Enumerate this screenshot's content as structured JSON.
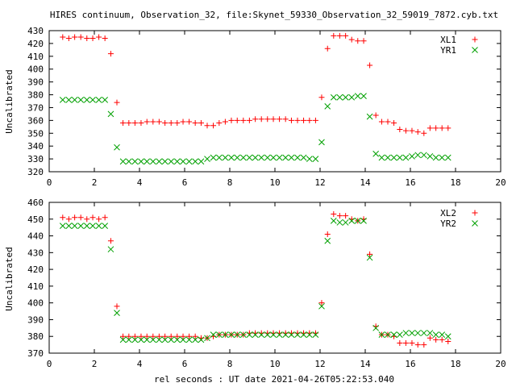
{
  "figure_title": "HIRES continuum, Observation_32, file:Skynet_59330_Observation_32_59019_7872.cyb.txt",
  "chart_data": [
    {
      "type": "scatter",
      "title": "",
      "xlabel": "",
      "ylabel": "Uncalibrated",
      "xlim": [
        0,
        20
      ],
      "ylim": [
        320,
        430
      ],
      "xticks": [
        0,
        2,
        4,
        6,
        8,
        10,
        12,
        14,
        16,
        18,
        20
      ],
      "yticks": [
        320,
        330,
        340,
        350,
        360,
        370,
        380,
        390,
        400,
        410,
        420,
        430
      ],
      "grid": false,
      "legend_position": "top-right",
      "x": [
        0.6,
        0.87,
        1.13,
        1.4,
        1.67,
        1.93,
        2.2,
        2.47,
        2.73,
        3.0,
        3.27,
        3.53,
        3.8,
        4.07,
        4.33,
        4.6,
        4.87,
        5.13,
        5.4,
        5.67,
        5.93,
        6.2,
        6.47,
        6.73,
        7.0,
        7.27,
        7.53,
        7.8,
        8.07,
        8.33,
        8.6,
        8.87,
        9.13,
        9.4,
        9.67,
        9.93,
        10.2,
        10.47,
        10.73,
        11.0,
        11.27,
        11.53,
        11.8,
        12.07,
        12.33,
        12.6,
        12.87,
        13.13,
        13.4,
        13.67,
        13.93,
        14.2,
        14.47,
        14.73,
        15.0,
        15.27,
        15.53,
        15.8,
        16.07,
        16.33,
        16.6,
        16.87,
        17.13,
        17.4,
        17.67,
        17.93,
        18.2
      ],
      "series": [
        {
          "name": "XL1",
          "marker": "plus",
          "color": "#ff0000",
          "values": [
            425,
            424,
            425,
            425,
            424,
            424,
            425,
            424,
            412,
            374,
            358,
            358,
            358,
            358,
            359,
            359,
            359,
            358,
            358,
            358,
            359,
            359,
            358,
            358,
            356,
            356,
            358,
            359,
            360,
            360,
            360,
            360,
            361,
            361,
            361,
            361,
            361,
            361,
            360,
            360,
            360,
            360,
            360,
            378,
            416,
            426,
            426,
            426,
            423,
            422,
            422,
            403,
            364,
            359,
            359,
            358,
            353,
            352,
            352,
            351,
            350,
            354,
            354,
            354,
            354,
            null,
            null
          ]
        },
        {
          "name": "YR1",
          "marker": "cross",
          "color": "#00a000",
          "values": [
            376,
            376,
            376,
            376,
            376,
            376,
            376,
            376,
            365,
            339,
            328,
            328,
            328,
            328,
            328,
            328,
            328,
            328,
            328,
            328,
            328,
            328,
            328,
            328,
            330,
            331,
            331,
            331,
            331,
            331,
            331,
            331,
            331,
            331,
            331,
            331,
            331,
            331,
            331,
            331,
            331,
            330,
            330,
            343,
            371,
            378,
            378,
            378,
            378,
            379,
            379,
            363,
            334,
            331,
            331,
            331,
            331,
            331,
            332,
            333,
            333,
            332,
            331,
            331,
            331,
            null,
            null
          ]
        }
      ]
    },
    {
      "type": "scatter",
      "title": "",
      "xlabel": "rel seconds : UT date 2021-04-26T05:22:53.040",
      "ylabel": "Uncalibrated",
      "xlim": [
        0,
        20
      ],
      "ylim": [
        370,
        460
      ],
      "xticks": [
        0,
        2,
        4,
        6,
        8,
        10,
        12,
        14,
        16,
        18,
        20
      ],
      "yticks": [
        370,
        380,
        390,
        400,
        410,
        420,
        430,
        440,
        450,
        460
      ],
      "grid": false,
      "legend_position": "top-right",
      "x": [
        0.6,
        0.87,
        1.13,
        1.4,
        1.67,
        1.93,
        2.2,
        2.47,
        2.73,
        3.0,
        3.27,
        3.53,
        3.8,
        4.07,
        4.33,
        4.6,
        4.87,
        5.13,
        5.4,
        5.67,
        5.93,
        6.2,
        6.47,
        6.73,
        7.0,
        7.27,
        7.53,
        7.8,
        8.07,
        8.33,
        8.6,
        8.87,
        9.13,
        9.4,
        9.67,
        9.93,
        10.2,
        10.47,
        10.73,
        11.0,
        11.27,
        11.53,
        11.8,
        12.07,
        12.33,
        12.6,
        12.87,
        13.13,
        13.4,
        13.67,
        13.93,
        14.2,
        14.47,
        14.73,
        15.0,
        15.27,
        15.53,
        15.8,
        16.07,
        16.33,
        16.6,
        16.87,
        17.13,
        17.4,
        17.67,
        17.93,
        18.2
      ],
      "series": [
        {
          "name": "XL2",
          "marker": "plus",
          "color": "#ff0000",
          "values": [
            451,
            450,
            451,
            451,
            450,
            451,
            450,
            451,
            437,
            398,
            380,
            380,
            380,
            380,
            380,
            380,
            380,
            380,
            380,
            380,
            380,
            380,
            380,
            379,
            379,
            380,
            381,
            381,
            381,
            381,
            381,
            382,
            382,
            382,
            382,
            382,
            382,
            382,
            382,
            382,
            382,
            382,
            382,
            400,
            441,
            453,
            452,
            452,
            450,
            449,
            450,
            429,
            386,
            381,
            381,
            380,
            376,
            376,
            376,
            375,
            375,
            379,
            378,
            378,
            377,
            null,
            null
          ]
        },
        {
          "name": "YR2",
          "marker": "cross",
          "color": "#00a000",
          "values": [
            446,
            446,
            446,
            446,
            446,
            446,
            446,
            446,
            432,
            394,
            378,
            378,
            378,
            378,
            378,
            378,
            378,
            378,
            378,
            378,
            378,
            378,
            378,
            378,
            379,
            381,
            381,
            381,
            381,
            381,
            381,
            381,
            381,
            381,
            381,
            381,
            381,
            381,
            381,
            381,
            381,
            381,
            381,
            398,
            437,
            449,
            448,
            448,
            449,
            449,
            449,
            427,
            385,
            381,
            381,
            381,
            381,
            382,
            382,
            382,
            382,
            382,
            381,
            381,
            380,
            null,
            null
          ]
        }
      ]
    }
  ]
}
